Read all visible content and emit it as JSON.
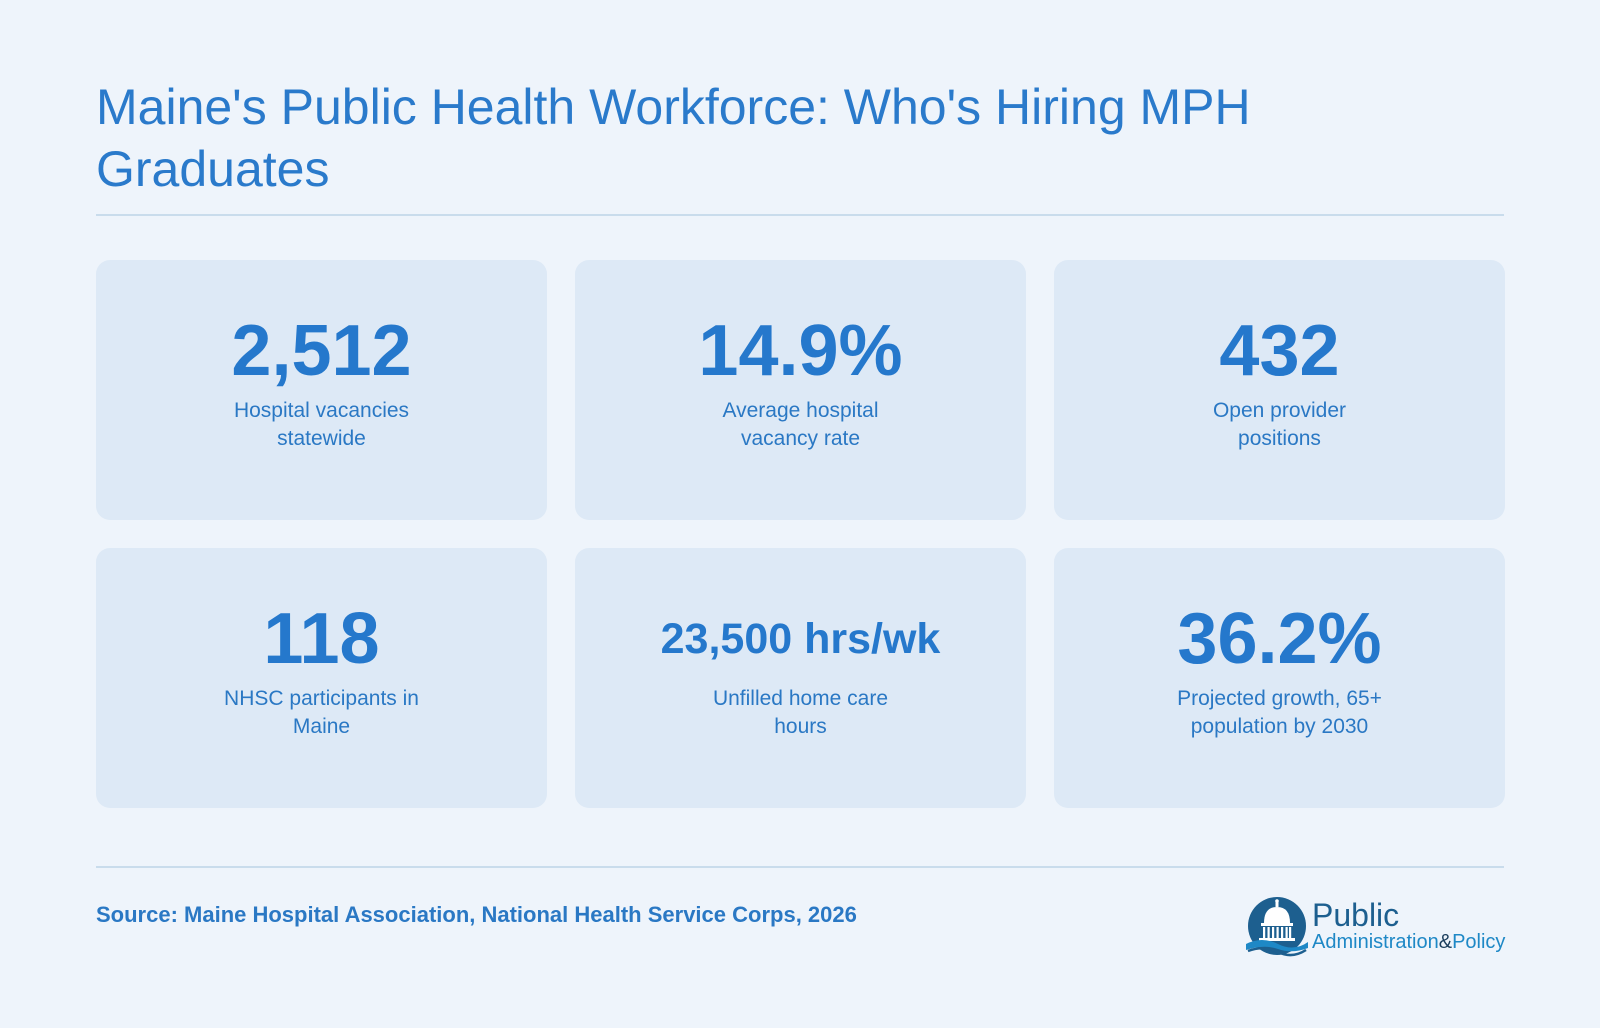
{
  "title": "Maine's Public Health Workforce: Who's Hiring MPH Graduates",
  "stats": [
    {
      "value": "2,512",
      "label": "Hospital vacancies statewide"
    },
    {
      "value": "14.9%",
      "label": "Average hospital vacancy rate"
    },
    {
      "value": "432",
      "label": "Open provider positions"
    },
    {
      "value": "118",
      "label": "NHSC participants in Maine"
    },
    {
      "value": "23,500 hrs/wk",
      "label": "Unfilled home care hours"
    },
    {
      "value": "36.2%",
      "label": "Projected growth, 65+ population by 2030"
    }
  ],
  "source": "Source: Maine Hospital Association, National Health Service Corps, 2026",
  "logo": {
    "main": "Public",
    "sub_left": "Administration",
    "amp": "&",
    "sub_right": "Policy",
    "icon": "capitol-dome-icon"
  },
  "colors": {
    "background": "#eef4fb",
    "card": "#dde9f6",
    "accent": "#2578cc",
    "divider": "#c9dcec"
  }
}
